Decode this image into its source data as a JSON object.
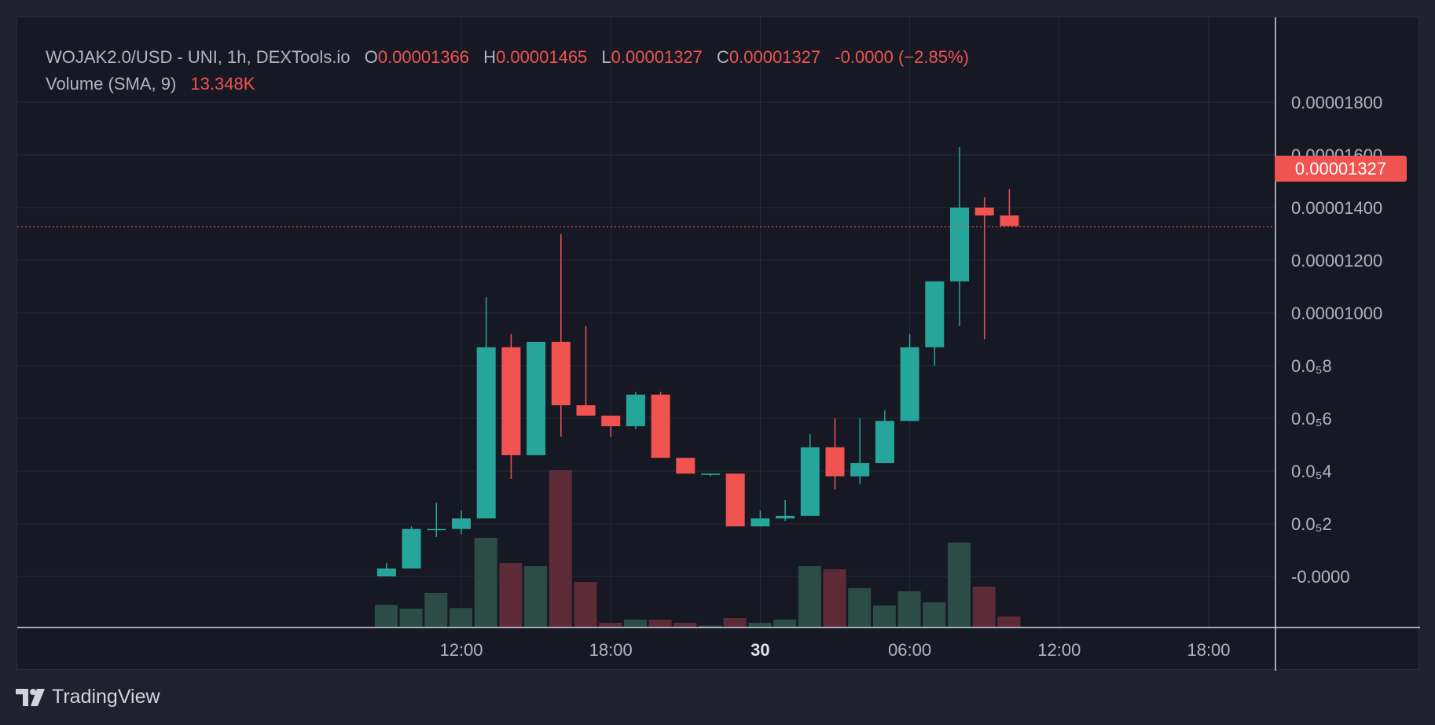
{
  "legend": {
    "symbol": "WOJAK2.0/USD - UNI, 1h, DEXTools.io",
    "open_label": "O",
    "open": "0.00001366",
    "high_label": "H",
    "high": "0.00001465",
    "low_label": "L",
    "low": "0.00001327",
    "close_label": "C",
    "close": "0.00001327",
    "change": "-0.0000 (−2.85%)",
    "volume_label": "Volume (SMA, 9)",
    "volume_value": "13.348K"
  },
  "last_price_label": "0.00001327",
  "branding": "TradingView",
  "colors": {
    "up": "#26a69a",
    "down": "#f05350",
    "volume_up": "#2b4d45",
    "volume_down": "#5c2b37",
    "background": "#161924",
    "grid": "#262a35",
    "axis_text": "#b2b5be"
  },
  "chart_data": {
    "type": "candlestick",
    "interval": "1h",
    "y_ticks": [
      {
        "value": 1.8e-05,
        "label": "0.00001800"
      },
      {
        "value": 1.6e-05,
        "label": "0.00001600"
      },
      {
        "value": 1.4e-05,
        "label": "0.00001400"
      },
      {
        "value": 1.2e-05,
        "label": "0.00001200"
      },
      {
        "value": 1e-05,
        "label": "0.00001000"
      },
      {
        "value": 8e-06,
        "label": "0.0₅8"
      },
      {
        "value": 6e-06,
        "label": "0.0₅6"
      },
      {
        "value": 4e-06,
        "label": "0.0₅4"
      },
      {
        "value": 2e-06,
        "label": "0.0₅2"
      },
      {
        "value": 0,
        "label": "-0.0000"
      }
    ],
    "x_ticks": [
      {
        "hour": 12,
        "label": "12:00",
        "bold": false
      },
      {
        "hour": 18,
        "label": "18:00",
        "bold": false
      },
      {
        "hour": 24,
        "label": "30",
        "bold": true
      },
      {
        "hour": 30,
        "label": "06:00",
        "bold": false
      },
      {
        "hour": 36,
        "label": "12:00",
        "bold": false
      },
      {
        "hour": 42,
        "label": "18:00",
        "bold": false
      }
    ],
    "last_price": 1.327e-05,
    "candles": [
      {
        "hour": 9,
        "o": 0.0,
        "h": 5e-07,
        "l": -0.0,
        "c": 3e-07,
        "vol": 7.2
      },
      {
        "hour": 10,
        "o": 3e-07,
        "h": 1.9e-06,
        "l": 3e-07,
        "c": 1.8e-06,
        "vol": 6.0
      },
      {
        "hour": 11,
        "o": 1.8e-06,
        "h": 2.8e-06,
        "l": 1.5e-06,
        "c": 1.8e-06,
        "vol": 11.0
      },
      {
        "hour": 12,
        "o": 1.8e-06,
        "h": 2.5e-06,
        "l": 1.6e-06,
        "c": 2.2e-06,
        "vol": 6.2
      },
      {
        "hour": 13,
        "o": 2.2e-06,
        "h": 1.06e-05,
        "l": 2.2e-06,
        "c": 8.7e-06,
        "vol": 28.5
      },
      {
        "hour": 14,
        "o": 8.7e-06,
        "h": 9.2e-06,
        "l": 3.7e-06,
        "c": 4.6e-06,
        "vol": 20.5
      },
      {
        "hour": 15,
        "o": 4.6e-06,
        "h": 8.9e-06,
        "l": 4.6e-06,
        "c": 8.9e-06,
        "vol": 19.5
      },
      {
        "hour": 16,
        "o": 8.9e-06,
        "h": 1.3e-05,
        "l": 5.3e-06,
        "c": 6.5e-06,
        "vol": 50.0
      },
      {
        "hour": 17,
        "o": 6.5e-06,
        "h": 9.5e-06,
        "l": 6.1e-06,
        "c": 6.1e-06,
        "vol": 14.5
      },
      {
        "hour": 18,
        "o": 6.1e-06,
        "h": 6.1e-06,
        "l": 5.3e-06,
        "c": 5.7e-06,
        "vol": 1.5
      },
      {
        "hour": 19,
        "o": 5.7e-06,
        "h": 7e-06,
        "l": 5.6e-06,
        "c": 6.9e-06,
        "vol": 2.5
      },
      {
        "hour": 20,
        "o": 6.9e-06,
        "h": 7e-06,
        "l": 4.5e-06,
        "c": 4.5e-06,
        "vol": 2.5
      },
      {
        "hour": 21,
        "o": 4.5e-06,
        "h": 4.5e-06,
        "l": 3.9e-06,
        "c": 3.9e-06,
        "vol": 1.5
      },
      {
        "hour": 22,
        "o": 3.9e-06,
        "h": 3.9e-06,
        "l": 3.8e-06,
        "c": 3.9e-06,
        "vol": 0.6
      },
      {
        "hour": 23,
        "o": 3.9e-06,
        "h": 3.9e-06,
        "l": 1.9e-06,
        "c": 1.9e-06,
        "vol": 3.0
      },
      {
        "hour": 24,
        "o": 1.9e-06,
        "h": 2.5e-06,
        "l": 1.9e-06,
        "c": 2.2e-06,
        "vol": 1.5
      },
      {
        "hour": 25,
        "o": 2.2e-06,
        "h": 2.9e-06,
        "l": 2.1e-06,
        "c": 2.3e-06,
        "vol": 2.5
      },
      {
        "hour": 26,
        "o": 2.3e-06,
        "h": 5.4e-06,
        "l": 2.3e-06,
        "c": 4.9e-06,
        "vol": 19.5
      },
      {
        "hour": 27,
        "o": 4.9e-06,
        "h": 6e-06,
        "l": 3.3e-06,
        "c": 3.8e-06,
        "vol": 18.5
      },
      {
        "hour": 28,
        "o": 3.8e-06,
        "h": 6e-06,
        "l": 3.5e-06,
        "c": 4.3e-06,
        "vol": 12.5
      },
      {
        "hour": 29,
        "o": 4.3e-06,
        "h": 6.3e-06,
        "l": 4.3e-06,
        "c": 5.9e-06,
        "vol": 7.0
      },
      {
        "hour": 30,
        "o": 5.9e-06,
        "h": 9.2e-06,
        "l": 5.9e-06,
        "c": 8.7e-06,
        "vol": 11.5
      },
      {
        "hour": 31,
        "o": 8.7e-06,
        "h": 1.12e-05,
        "l": 8e-06,
        "c": 1.12e-05,
        "vol": 8.0
      },
      {
        "hour": 32,
        "o": 1.12e-05,
        "h": 1.63e-05,
        "l": 9.5e-06,
        "c": 1.4e-05,
        "vol": 27.0
      },
      {
        "hour": 33,
        "o": 1.4e-05,
        "h": 1.44e-05,
        "l": 9e-06,
        "c": 1.37e-05,
        "vol": 13.0
      },
      {
        "hour": 34,
        "o": 1.37e-05,
        "h": 1.47e-05,
        "l": 1.33e-05,
        "c": 1.33e-05,
        "vol": 3.5
      }
    ]
  }
}
